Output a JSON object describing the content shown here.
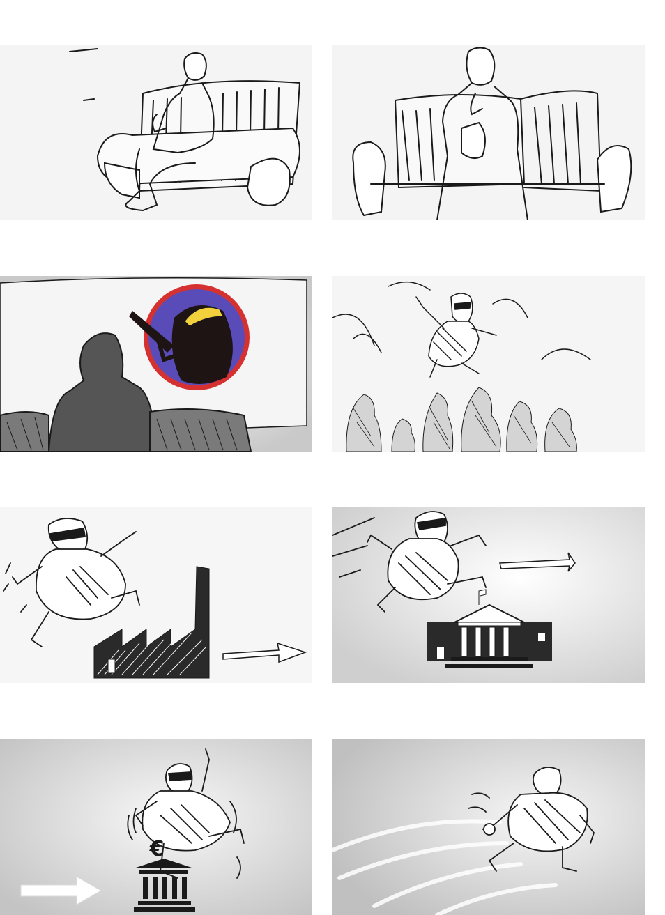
{
  "storyboard": {
    "panels": [
      {
        "id": 1,
        "description_icon": "man-on-sofa-icon"
      },
      {
        "id": 2,
        "description_icon": "man-eating-on-sofa-icon"
      },
      {
        "id": 3,
        "description_icon": "viewer-watching-screen-icon"
      },
      {
        "id": 4,
        "description_icon": "burglar-jumping-over-crowd-icon"
      },
      {
        "id": 5,
        "description_icon": "burglar-over-factory-icon"
      },
      {
        "id": 6,
        "description_icon": "burglar-over-bank-icon"
      },
      {
        "id": 7,
        "description_icon": "burglar-over-euro-bank-icon"
      },
      {
        "id": 8,
        "description_icon": "burglar-running-icon"
      }
    ],
    "euro_sign": "€"
  },
  "colors": {
    "paper": "#f4f4f4",
    "ink": "#1a1a1a",
    "tv_ring": "#d63131",
    "tv_background": "#5a4cb8",
    "hat_yellow": "#f2d13c"
  }
}
